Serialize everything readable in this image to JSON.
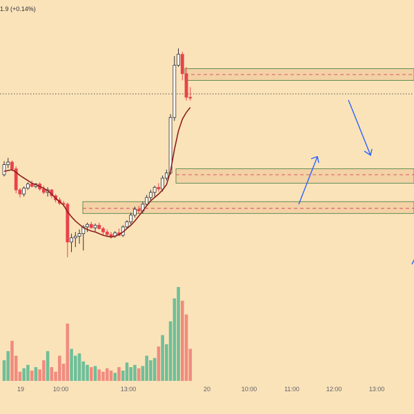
{
  "header": {
    "price_change": "1.9 (+0.14%)"
  },
  "colors": {
    "background": "#fbe3b9",
    "up_candle": "#ffffff",
    "down_candle": "#e8434b",
    "wick": "#2a2e39",
    "volume_up": "#6fbf99",
    "volume_down": "#f08c80",
    "ma_line": "#8c1d1d",
    "zone_fill": "#f3d2a6",
    "zone_border": "#3d7a3d",
    "zone_midline": "#d9485a",
    "arrow": "#2962ff",
    "axis_text": "#5d6069"
  },
  "chart_data": {
    "type": "candlestick",
    "x_axis_ticks": [
      "19",
      "10:00",
      "13:00",
      "20",
      "10:00",
      "11:00",
      "12:00",
      "13:00"
    ],
    "candles": [
      {
        "o": 40,
        "h": 56,
        "l": 38,
        "c": 52
      },
      {
        "o": 52,
        "h": 60,
        "l": 48,
        "c": 55
      },
      {
        "o": 55,
        "h": 57,
        "l": 44,
        "c": 47
      },
      {
        "o": 47,
        "h": 50,
        "l": 18,
        "c": 22
      },
      {
        "o": 22,
        "h": 24,
        "l": 13,
        "c": 17
      },
      {
        "o": 17,
        "h": 26,
        "l": 14,
        "c": 24
      },
      {
        "o": 24,
        "h": 31,
        "l": 22,
        "c": 29
      },
      {
        "o": 29,
        "h": 33,
        "l": 25,
        "c": 26
      },
      {
        "o": 26,
        "h": 30,
        "l": 24,
        "c": 29
      },
      {
        "o": 29,
        "h": 31,
        "l": 21,
        "c": 23
      },
      {
        "o": 23,
        "h": 27,
        "l": 17,
        "c": 19
      },
      {
        "o": 19,
        "h": 25,
        "l": 14,
        "c": 22
      },
      {
        "o": 22,
        "h": 23,
        "l": 12,
        "c": 15
      },
      {
        "o": 15,
        "h": 17,
        "l": 7,
        "c": 10
      },
      {
        "o": 10,
        "h": 13,
        "l": 4,
        "c": 6
      },
      {
        "o": 6,
        "h": 9,
        "l": 2,
        "c": 5
      },
      {
        "o": 5,
        "h": 7,
        "l": -58,
        "c": -40
      },
      {
        "o": -40,
        "h": -30,
        "l": -52,
        "c": -35
      },
      {
        "o": -35,
        "h": -28,
        "l": -46,
        "c": -33
      },
      {
        "o": -33,
        "h": -25,
        "l": -42,
        "c": -30
      },
      {
        "o": -30,
        "h": -20,
        "l": -50,
        "c": -22
      },
      {
        "o": -22,
        "h": -17,
        "l": -28,
        "c": -19
      },
      {
        "o": -19,
        "h": -16,
        "l": -24,
        "c": -23
      },
      {
        "o": -23,
        "h": -18,
        "l": -27,
        "c": -20
      },
      {
        "o": -20,
        "h": -17,
        "l": -25,
        "c": -24
      },
      {
        "o": -24,
        "h": -22,
        "l": -31,
        "c": -28
      },
      {
        "o": -28,
        "h": -25,
        "l": -34,
        "c": -31
      },
      {
        "o": -31,
        "h": -28,
        "l": -36,
        "c": -33
      },
      {
        "o": -33,
        "h": -27,
        "l": -35,
        "c": -29
      },
      {
        "o": -29,
        "h": -24,
        "l": -33,
        "c": -32
      },
      {
        "o": -32,
        "h": -20,
        "l": -34,
        "c": -22
      },
      {
        "o": -22,
        "h": -14,
        "l": -24,
        "c": -16
      },
      {
        "o": -16,
        "h": -5,
        "l": -19,
        "c": -8
      },
      {
        "o": -8,
        "h": 2,
        "l": -11,
        "c": -1
      },
      {
        "o": -1,
        "h": 3,
        "l": -6,
        "c": -3
      },
      {
        "o": -3,
        "h": 8,
        "l": -6,
        "c": 5
      },
      {
        "o": 5,
        "h": 16,
        "l": 3,
        "c": 13
      },
      {
        "o": 13,
        "h": 22,
        "l": 10,
        "c": 19
      },
      {
        "o": 19,
        "h": 27,
        "l": 14,
        "c": 25
      },
      {
        "o": 25,
        "h": 30,
        "l": 20,
        "c": 23
      },
      {
        "o": 23,
        "h": 39,
        "l": 20,
        "c": 36
      },
      {
        "o": 36,
        "h": 46,
        "l": 33,
        "c": 42
      },
      {
        "o": 42,
        "h": 112,
        "l": 40,
        "c": 108
      },
      {
        "o": 108,
        "h": 181,
        "l": 104,
        "c": 170
      },
      {
        "o": 170,
        "h": 190,
        "l": 168,
        "c": 183
      },
      {
        "o": 183,
        "h": 186,
        "l": 152,
        "c": 160
      },
      {
        "o": 160,
        "h": 168,
        "l": 128,
        "c": 132
      },
      {
        "o": 132,
        "h": 144,
        "l": 128,
        "c": 131
      }
    ],
    "moving_average": [
      44,
      45,
      46,
      43,
      39,
      36,
      33,
      30,
      28,
      26,
      24,
      21,
      17,
      12,
      8,
      4,
      -4,
      -10,
      -15,
      -19,
      -23,
      -25,
      -27,
      -28,
      -30,
      -32,
      -33,
      -34,
      -33,
      -31,
      -28,
      -24,
      -20,
      -15,
      -9,
      -3,
      3,
      9,
      13,
      17,
      22,
      28,
      44,
      70,
      92,
      106,
      114,
      120
    ],
    "volume": [
      18,
      26,
      35,
      22,
      8,
      11,
      14,
      9,
      12,
      10,
      18,
      26,
      12,
      8,
      22,
      15,
      50,
      28,
      22,
      24,
      17,
      14,
      12,
      13,
      10,
      8,
      11,
      9,
      7,
      12,
      9,
      16,
      12,
      14,
      11,
      13,
      22,
      18,
      20,
      30,
      40,
      32,
      52,
      72,
      82,
      70,
      58,
      28
    ],
    "zones": [
      {
        "top": 166,
        "bottom": 152,
        "mid": 159
      },
      {
        "top": 47,
        "bottom": 30,
        "mid": 40
      },
      {
        "top": 8,
        "bottom": -6,
        "mid": 0
      }
    ],
    "reference_price": 136
  }
}
